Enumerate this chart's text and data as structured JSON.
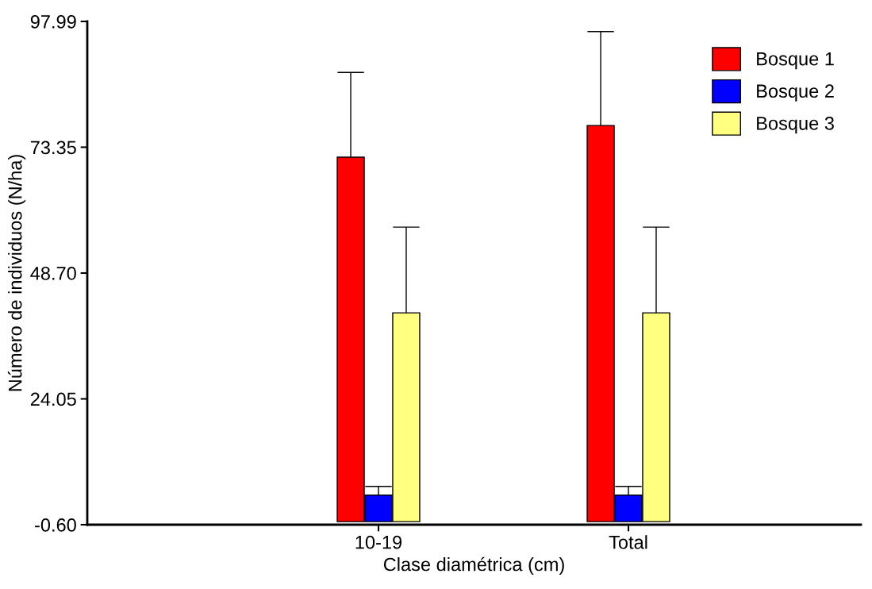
{
  "chart_data": {
    "type": "bar",
    "xlabel": "Clase diamétrica (cm)",
    "ylabel": "Número de individuos (N/ha)",
    "categories": [
      "10-19",
      "Total"
    ],
    "series": [
      {
        "name": "Bosque 1",
        "color": "#ff0000",
        "values": [
          71.4,
          77.6
        ],
        "errors": [
          [
            71.4,
            88.0
          ],
          [
            77.6,
            96.0
          ]
        ]
      },
      {
        "name": "Bosque 2",
        "color": "#0000ff",
        "values": [
          5.2,
          5.2
        ],
        "errors": [
          [
            5.2,
            6.9
          ],
          [
            5.2,
            6.9
          ]
        ]
      },
      {
        "name": "Bosque 3",
        "color": "#ffff80",
        "values": [
          40.9,
          40.9
        ],
        "errors": [
          [
            40.9,
            57.7
          ],
          [
            40.9,
            57.7
          ]
        ]
      }
    ],
    "ylim": [
      -0.6,
      97.99
    ],
    "yticks": [
      {
        "value": -0.6,
        "label": "-0.60"
      },
      {
        "value": 24.05,
        "label": "24.05"
      },
      {
        "value": 48.7,
        "label": "48.70"
      },
      {
        "value": 73.35,
        "label": "73.35"
      },
      {
        "value": 97.99,
        "label": "97.99"
      }
    ],
    "grid": false,
    "legend": "top right"
  }
}
